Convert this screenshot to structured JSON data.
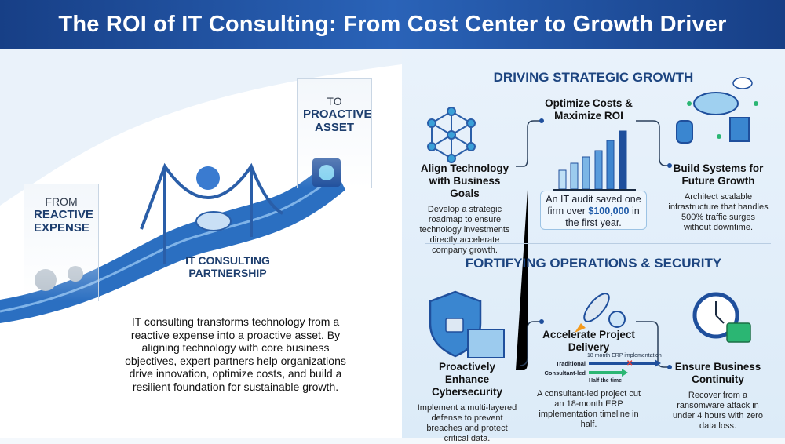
{
  "title": "The ROI of IT Consulting: From Cost Center to Growth Driver",
  "left": {
    "from": {
      "small": "FROM",
      "big": "REACTIVE EXPENSE"
    },
    "to": {
      "small": "TO",
      "big": "PROACTIVE ASSET"
    },
    "partnership": "IT CONSULTING PARTNERSHIP",
    "intro": "IT consulting transforms technology from a reactive expense into a proactive asset. By aligning technology with core business objectives, expert partners help organizations drive innovation, optimize costs, and build a resilient foundation for sustainable growth."
  },
  "growth": {
    "heading": "DRIVING STRATEGIC GROWTH",
    "items": [
      {
        "title": "Align Technology with Business Goals",
        "text": "Develop a strategic roadmap to ensure technology investments directly accelerate company growth.",
        "icon": "network-icon"
      },
      {
        "title": "Optimize Costs & Maximize ROI",
        "callout_pre": "An IT audit saved one firm over ",
        "callout_value": "$100,000",
        "callout_post": " in the first year.",
        "icon": "bar-chart-icon"
      },
      {
        "title": "Build Systems for Future Growth",
        "text": "Architect scalable infrastructure that handles 500% traffic surges without downtime.",
        "icon": "cloud-infrastructure-icon"
      }
    ]
  },
  "operations": {
    "heading": "FORTIFYING OPERATIONS & SECURITY",
    "items": [
      {
        "title": "Proactively Enhance Cybersecurity",
        "text": "Implement a multi-layered defense to prevent breaches and protect critical data.",
        "icon": "shield-lock-icon"
      },
      {
        "title": "Accelerate Project Delivery",
        "text": "A consultant-led project cut an 18-month ERP implementation timeline in half.",
        "icon": "rocket-icon",
        "timeline": {
          "top_label": "18 month ERP implementation",
          "traditional": "Traditional",
          "consultant": "Consultant-led",
          "bottom_label": "Half the time"
        }
      },
      {
        "title": "Ensure Business Continuity",
        "text": "Recover from a ransomware attack in under 4 hours with zero data loss.",
        "icon": "clock-restore-icon"
      }
    ]
  },
  "colors": {
    "header": "#1f4f9c",
    "accent": "#2a6fc4",
    "green": "#2bb673",
    "callout_value": "#1e5aa8"
  }
}
